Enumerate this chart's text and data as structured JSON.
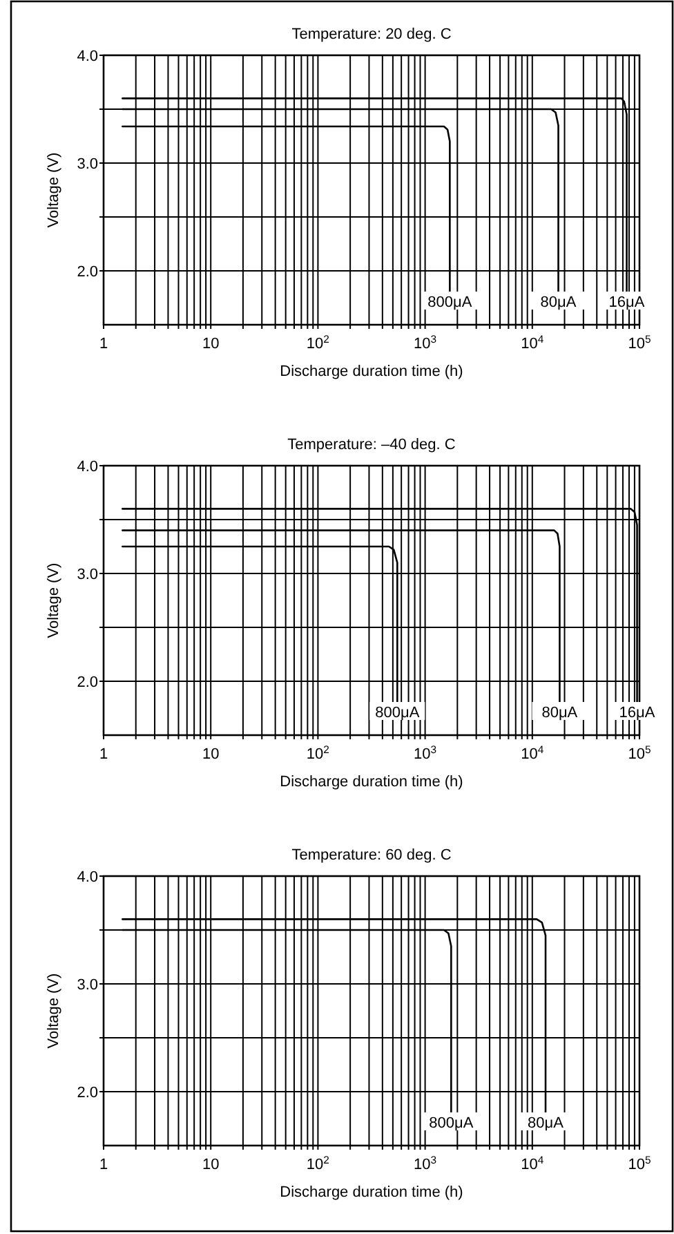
{
  "chart_data": [
    {
      "type": "line",
      "title": "Temperature: 20 deg. C",
      "xlabel": "Discharge duration time (h)",
      "ylabel": "Voltage (V)",
      "log": "x",
      "grid": true,
      "marker": "none",
      "line_style": "solid",
      "xlim": [
        1,
        100000
      ],
      "ylim": [
        1.5,
        4.0
      ],
      "xticks": [
        {
          "value": 1,
          "label": "1"
        },
        {
          "value": 2,
          "label": null
        },
        {
          "value": 3,
          "label": null
        },
        {
          "value": 4,
          "label": null
        },
        {
          "value": 5,
          "label": null
        },
        {
          "value": 6,
          "label": null
        },
        {
          "value": 7,
          "label": null
        },
        {
          "value": 8,
          "label": null
        },
        {
          "value": 9,
          "label": null
        },
        {
          "value": 10,
          "label": "10"
        },
        {
          "value": 20,
          "label": null
        },
        {
          "value": 30,
          "label": null
        },
        {
          "value": 40,
          "label": null
        },
        {
          "value": 50,
          "label": null
        },
        {
          "value": 60,
          "label": null
        },
        {
          "value": 70,
          "label": null
        },
        {
          "value": 80,
          "label": null
        },
        {
          "value": 90,
          "label": null
        },
        {
          "value": 100,
          "label": "10$^{2}$"
        },
        {
          "value": 200,
          "label": null
        },
        {
          "value": 300,
          "label": null
        },
        {
          "value": 400,
          "label": null
        },
        {
          "value": 500,
          "label": null
        },
        {
          "value": 600,
          "label": null
        },
        {
          "value": 700,
          "label": null
        },
        {
          "value": 800,
          "label": null
        },
        {
          "value": 900,
          "label": null
        },
        {
          "value": 1000,
          "label": "10$^{3}$"
        },
        {
          "value": 2000,
          "label": null
        },
        {
          "value": 3000,
          "label": null
        },
        {
          "value": 4000,
          "label": null
        },
        {
          "value": 5000,
          "label": null
        },
        {
          "value": 6000,
          "label": null
        },
        {
          "value": 7000,
          "label": null
        },
        {
          "value": 8000,
          "label": null
        },
        {
          "value": 9000,
          "label": null
        },
        {
          "value": 10000,
          "label": "10$^{4}$"
        },
        {
          "value": 20000,
          "label": null
        },
        {
          "value": 30000,
          "label": null
        },
        {
          "value": 40000,
          "label": null
        },
        {
          "value": 50000,
          "label": null
        },
        {
          "value": 60000,
          "label": null
        },
        {
          "value": 70000,
          "label": null
        },
        {
          "value": 80000,
          "label": null
        },
        {
          "value": 90000,
          "label": null
        },
        {
          "value": 100000,
          "label": "10$^{5}$"
        }
      ],
      "yticks": [
        {
          "value": 2,
          "label": "2.0"
        },
        {
          "value": 2.5,
          "label": null
        },
        {
          "value": 3,
          "label": "3.0"
        },
        {
          "value": 3.5,
          "label": null
        },
        {
          "value": 4,
          "label": "4.0"
        }
      ],
      "series": [
        {
          "name": "16μA",
          "color": "#000000",
          "x": [
            1.5,
            68000,
            72000,
            76000,
            76000
          ],
          "values": [
            3.6,
            3.6,
            3.57,
            3.45,
            1.8
          ]
        },
        {
          "name": "80μA",
          "color": "#000000",
          "x": [
            1.5,
            15000,
            16500,
            17500,
            17500
          ],
          "values": [
            3.5,
            3.5,
            3.47,
            3.35,
            1.8
          ]
        },
        {
          "name": "800μA",
          "color": "#000000",
          "x": [
            1.5,
            1500,
            1620,
            1700,
            1700
          ],
          "values": [
            3.34,
            3.34,
            3.31,
            3.2,
            1.8
          ]
        }
      ]
    },
    {
      "type": "line",
      "title": "Temperature: –40 deg. C",
      "xlabel": "Discharge duration time (h)",
      "ylabel": "Voltage (V)",
      "log": "x",
      "grid": true,
      "marker": "none",
      "line_style": "solid",
      "xlim": [
        1,
        100000
      ],
      "ylim": [
        1.5,
        4.0
      ],
      "xticks": [
        {
          "value": 1,
          "label": "1"
        },
        {
          "value": 2,
          "label": null
        },
        {
          "value": 3,
          "label": null
        },
        {
          "value": 4,
          "label": null
        },
        {
          "value": 5,
          "label": null
        },
        {
          "value": 6,
          "label": null
        },
        {
          "value": 7,
          "label": null
        },
        {
          "value": 8,
          "label": null
        },
        {
          "value": 9,
          "label": null
        },
        {
          "value": 10,
          "label": "10"
        },
        {
          "value": 20,
          "label": null
        },
        {
          "value": 30,
          "label": null
        },
        {
          "value": 40,
          "label": null
        },
        {
          "value": 50,
          "label": null
        },
        {
          "value": 60,
          "label": null
        },
        {
          "value": 70,
          "label": null
        },
        {
          "value": 80,
          "label": null
        },
        {
          "value": 90,
          "label": null
        },
        {
          "value": 100,
          "label": "10$^{2}$"
        },
        {
          "value": 200,
          "label": null
        },
        {
          "value": 300,
          "label": null
        },
        {
          "value": 400,
          "label": null
        },
        {
          "value": 500,
          "label": null
        },
        {
          "value": 600,
          "label": null
        },
        {
          "value": 700,
          "label": null
        },
        {
          "value": 800,
          "label": null
        },
        {
          "value": 900,
          "label": null
        },
        {
          "value": 1000,
          "label": "10$^{3}$"
        },
        {
          "value": 2000,
          "label": null
        },
        {
          "value": 3000,
          "label": null
        },
        {
          "value": 4000,
          "label": null
        },
        {
          "value": 5000,
          "label": null
        },
        {
          "value": 6000,
          "label": null
        },
        {
          "value": 7000,
          "label": null
        },
        {
          "value": 8000,
          "label": null
        },
        {
          "value": 9000,
          "label": null
        },
        {
          "value": 10000,
          "label": "10$^{4}$"
        },
        {
          "value": 20000,
          "label": null
        },
        {
          "value": 30000,
          "label": null
        },
        {
          "value": 40000,
          "label": null
        },
        {
          "value": 50000,
          "label": null
        },
        {
          "value": 60000,
          "label": null
        },
        {
          "value": 70000,
          "label": null
        },
        {
          "value": 80000,
          "label": null
        },
        {
          "value": 90000,
          "label": null
        },
        {
          "value": 100000,
          "label": "10$^{5}$"
        }
      ],
      "yticks": [
        {
          "value": 2,
          "label": "2.0"
        },
        {
          "value": 2.5,
          "label": null
        },
        {
          "value": 3,
          "label": "3.0"
        },
        {
          "value": 3.5,
          "label": null
        },
        {
          "value": 4,
          "label": "4.0"
        }
      ],
      "series": [
        {
          "name": "16μA",
          "color": "#000000",
          "x": [
            1.5,
            83000,
            90000,
            95000,
            95000
          ],
          "values": [
            3.6,
            3.6,
            3.57,
            3.45,
            1.8
          ]
        },
        {
          "name": "80μA",
          "color": "#000000",
          "x": [
            1.5,
            16000,
            17200,
            18000,
            18000
          ],
          "values": [
            3.4,
            3.4,
            3.37,
            3.25,
            1.8
          ]
        },
        {
          "name": "800μA",
          "color": "#000000",
          "x": [
            1.5,
            460,
            510,
            550,
            550
          ],
          "values": [
            3.25,
            3.25,
            3.22,
            3.1,
            1.8
          ]
        }
      ]
    },
    {
      "type": "line",
      "title": "Temperature: 60 deg. C",
      "xlabel": "Discharge duration time (h)",
      "ylabel": "Voltage (V)",
      "log": "x",
      "grid": true,
      "marker": "none",
      "line_style": "solid",
      "xlim": [
        1,
        100000
      ],
      "ylim": [
        1.5,
        4.0
      ],
      "xticks": [
        {
          "value": 1,
          "label": "1"
        },
        {
          "value": 2,
          "label": null
        },
        {
          "value": 3,
          "label": null
        },
        {
          "value": 4,
          "label": null
        },
        {
          "value": 5,
          "label": null
        },
        {
          "value": 6,
          "label": null
        },
        {
          "value": 7,
          "label": null
        },
        {
          "value": 8,
          "label": null
        },
        {
          "value": 9,
          "label": null
        },
        {
          "value": 10,
          "label": "10"
        },
        {
          "value": 20,
          "label": null
        },
        {
          "value": 30,
          "label": null
        },
        {
          "value": 40,
          "label": null
        },
        {
          "value": 50,
          "label": null
        },
        {
          "value": 60,
          "label": null
        },
        {
          "value": 70,
          "label": null
        },
        {
          "value": 80,
          "label": null
        },
        {
          "value": 90,
          "label": null
        },
        {
          "value": 100,
          "label": "10$^{2}$"
        },
        {
          "value": 200,
          "label": null
        },
        {
          "value": 300,
          "label": null
        },
        {
          "value": 400,
          "label": null
        },
        {
          "value": 500,
          "label": null
        },
        {
          "value": 600,
          "label": null
        },
        {
          "value": 700,
          "label": null
        },
        {
          "value": 800,
          "label": null
        },
        {
          "value": 900,
          "label": null
        },
        {
          "value": 1000,
          "label": "10$^{3}$"
        },
        {
          "value": 2000,
          "label": null
        },
        {
          "value": 3000,
          "label": null
        },
        {
          "value": 4000,
          "label": null
        },
        {
          "value": 5000,
          "label": null
        },
        {
          "value": 6000,
          "label": null
        },
        {
          "value": 7000,
          "label": null
        },
        {
          "value": 8000,
          "label": null
        },
        {
          "value": 9000,
          "label": null
        },
        {
          "value": 10000,
          "label": "10$^{4}$"
        },
        {
          "value": 20000,
          "label": null
        },
        {
          "value": 30000,
          "label": null
        },
        {
          "value": 40000,
          "label": null
        },
        {
          "value": 50000,
          "label": null
        },
        {
          "value": 60000,
          "label": null
        },
        {
          "value": 70000,
          "label": null
        },
        {
          "value": 80000,
          "label": null
        },
        {
          "value": 90000,
          "label": null
        },
        {
          "value": 100000,
          "label": "10$^{5}$"
        }
      ],
      "yticks": [
        {
          "value": 2,
          "label": "2.0"
        },
        {
          "value": 2.5,
          "label": null
        },
        {
          "value": 3,
          "label": "3.0"
        },
        {
          "value": 3.5,
          "label": null
        },
        {
          "value": 4,
          "label": "4.0"
        }
      ],
      "series": [
        {
          "name": "80μA",
          "color": "#000000",
          "x": [
            1.5,
            11000,
            12300,
            13300,
            13300
          ],
          "values": [
            3.6,
            3.6,
            3.57,
            3.45,
            1.8
          ]
        },
        {
          "name": "800μA",
          "color": "#000000",
          "x": [
            1.5,
            1500,
            1650,
            1750,
            1750
          ],
          "values": [
            3.5,
            3.5,
            3.47,
            3.35,
            1.8
          ]
        }
      ]
    }
  ]
}
